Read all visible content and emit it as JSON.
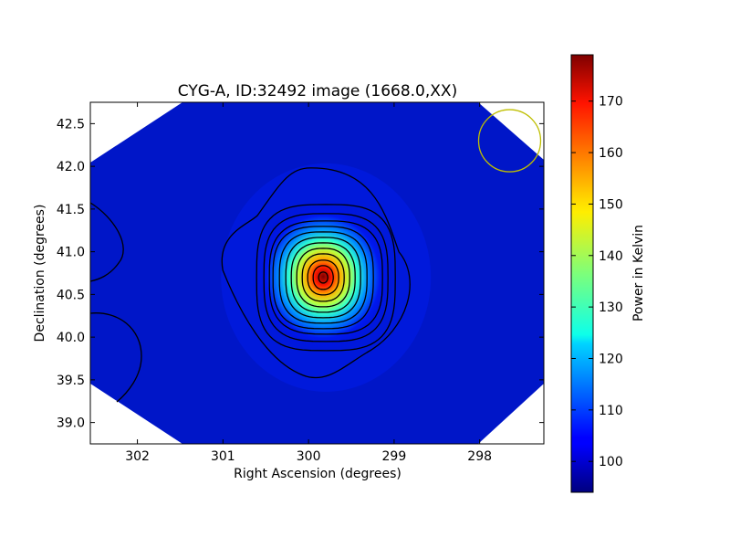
{
  "chart_data": {
    "type": "heatmap",
    "title": "CYG-A, ID:32492 image (1668.0,XX)",
    "xlabel": "Right Ascension (degrees)",
    "ylabel": "Declination (degrees)",
    "xlim": [
      302.55,
      297.25
    ],
    "ylim": [
      38.75,
      42.75
    ],
    "x_ticks": [
      302,
      301,
      300,
      299,
      298
    ],
    "x_tick_labels": [
      "302",
      "301",
      "300",
      "299",
      "298"
    ],
    "y_ticks": [
      39.0,
      39.5,
      40.0,
      40.5,
      41.0,
      41.5,
      42.0,
      42.5
    ],
    "y_tick_labels": [
      "39.0",
      "39.5",
      "40.0",
      "40.5",
      "41.0",
      "41.5",
      "42.0",
      "42.5"
    ],
    "colormap": "jet",
    "colorbar": {
      "label": "Power in Kelvin",
      "range": [
        94,
        179
      ],
      "ticks": [
        100,
        110,
        120,
        130,
        140,
        150,
        160,
        170
      ],
      "tick_labels": [
        "100",
        "110",
        "120",
        "130",
        "140",
        "150",
        "160",
        "170"
      ]
    },
    "background_level": 98,
    "peak": {
      "ra": 299.85,
      "dec": 40.73,
      "value": 179
    },
    "contours": "black contour lines around peak",
    "beam_circle": {
      "ra": 297.65,
      "dec": 42.3,
      "color": "#bfbf00"
    }
  }
}
